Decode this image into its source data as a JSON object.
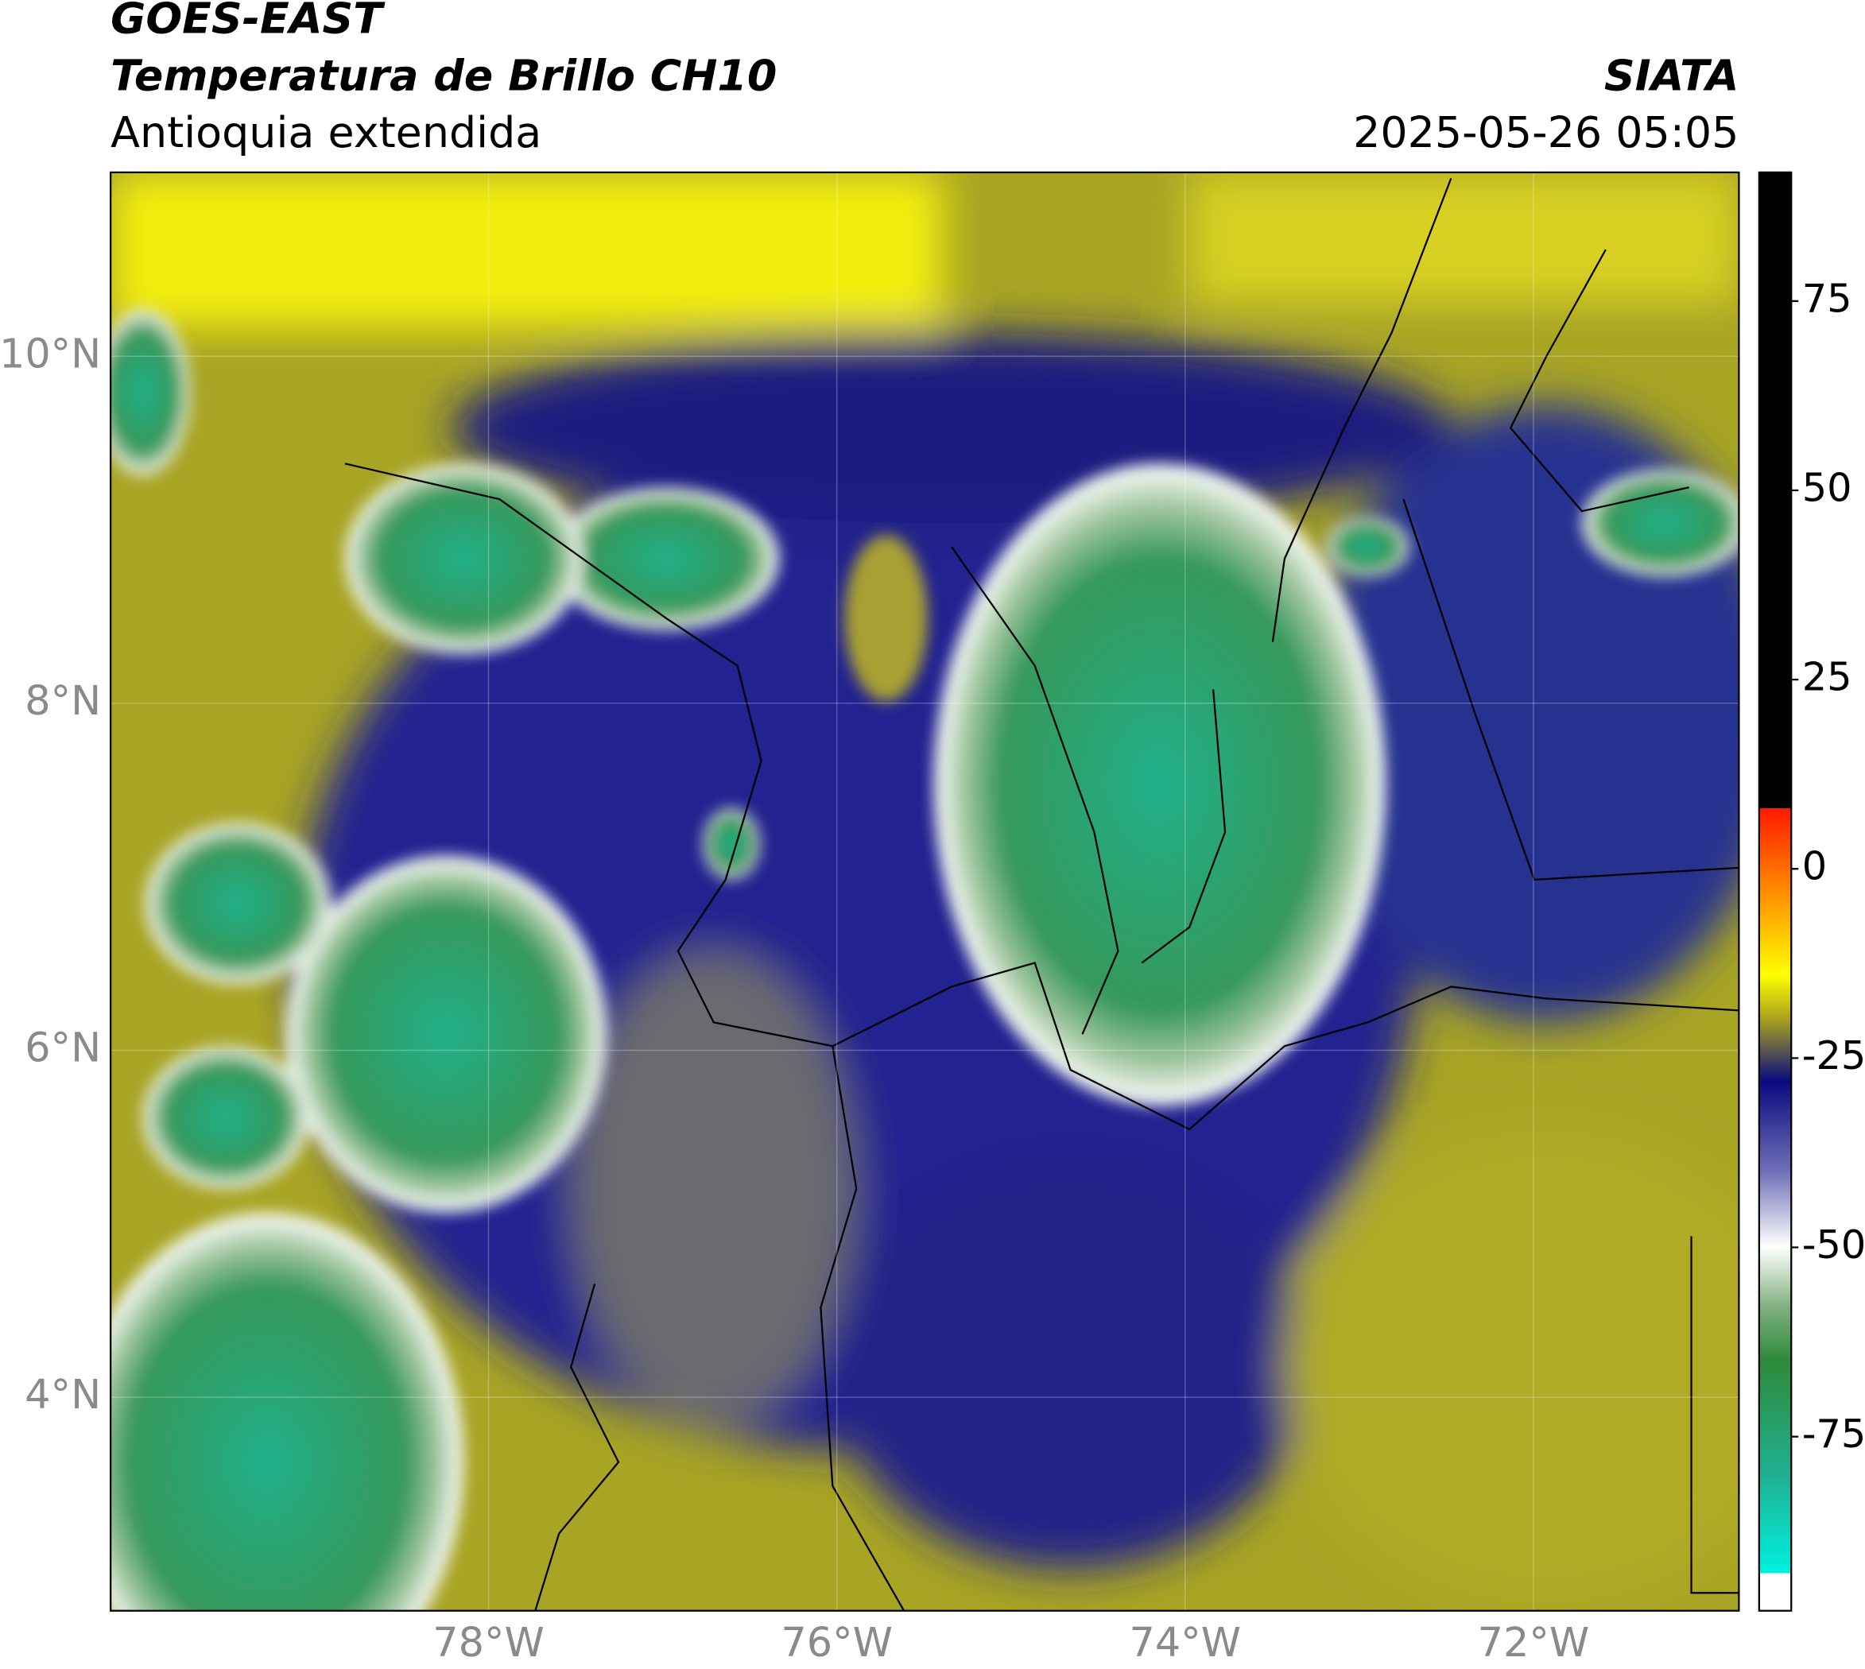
{
  "header": {
    "title": "GOES-EAST",
    "subtitle": "Temperatura de Brillo CH10",
    "region": "Antioquia extendida",
    "source": "SIATA",
    "datetime": "2025-05-26 05:05"
  },
  "map": {
    "lonlim": [
      -80.17,
      -70.82
    ],
    "latlim": [
      2.77,
      11.06
    ],
    "lat_ticks": [
      {
        "value": 10,
        "label": "10°N"
      },
      {
        "value": 8,
        "label": "8°N"
      },
      {
        "value": 6,
        "label": "6°N"
      },
      {
        "value": 4,
        "label": "4°N"
      }
    ],
    "lon_ticks": [
      {
        "value": -78,
        "label": "78°W"
      },
      {
        "value": -76,
        "label": "76°W"
      },
      {
        "value": -74,
        "label": "74°W"
      },
      {
        "value": -72,
        "label": "72°W"
      }
    ],
    "grid": true
  },
  "colorbar": {
    "lim": [
      -98,
      92
    ],
    "ticks": [
      75,
      50,
      25,
      0,
      -25,
      -50,
      -75
    ]
  }
}
